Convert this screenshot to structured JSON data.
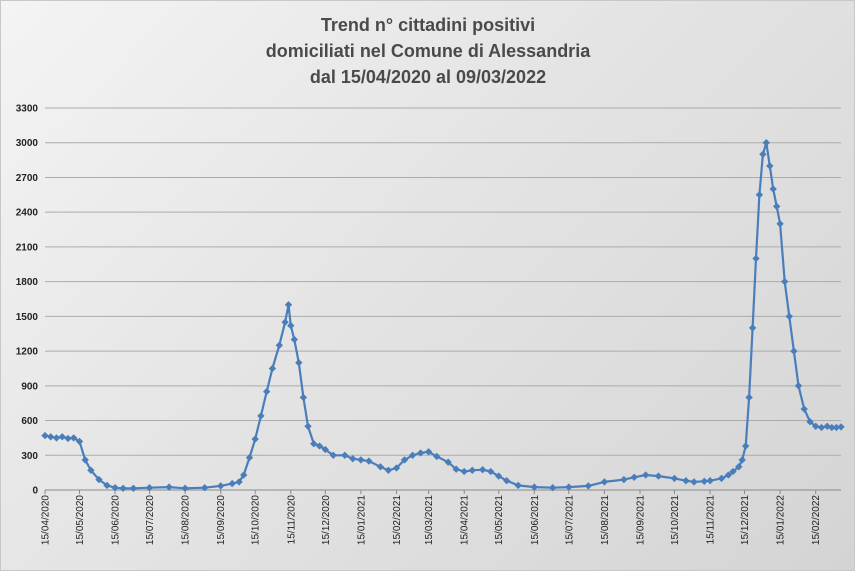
{
  "chart_data": {
    "type": "line",
    "title": [
      "Trend n° cittadini positivi",
      "domiciliati nel Comune di Alessandria",
      "dal 15/04/2020 al 09/03/2022"
    ],
    "xlabel": "",
    "ylabel": "",
    "ylim": [
      0,
      3300
    ],
    "yticks": [
      0,
      300,
      600,
      900,
      1200,
      1500,
      1800,
      2100,
      2400,
      2700,
      3000,
      3300
    ],
    "xticks": [
      "15/04/2020",
      "15/05/2020",
      "15/06/2020",
      "15/07/2020",
      "15/08/2020",
      "15/09/2020",
      "15/10/2020",
      "15/11/2020",
      "15/12/2020",
      "15/01/2021",
      "15/02/2021",
      "15/03/2021",
      "15/04/2021",
      "15/05/2021",
      "15/06/2021",
      "15/07/2021",
      "15/08/2021",
      "15/09/2021",
      "15/10/2021",
      "15/11/2021",
      "15/12/2021",
      "15/01/2022",
      "15/02/2022"
    ],
    "grid": true,
    "legend": "none",
    "color": "#4a7ebb",
    "series": [
      {
        "x": [
          "15/04/2020",
          "20/04/2020",
          "25/04/2020",
          "30/04/2020",
          "05/05/2020",
          "10/05/2020",
          "15/05/2020",
          "20/05/2020",
          "25/05/2020",
          "01/06/2020",
          "08/06/2020",
          "15/06/2020",
          "22/06/2020",
          "01/07/2020",
          "15/07/2020",
          "01/08/2020",
          "15/08/2020",
          "01/09/2020",
          "15/09/2020",
          "25/09/2020",
          "01/10/2020",
          "05/10/2020",
          "10/10/2020",
          "15/10/2020",
          "20/10/2020",
          "25/10/2020",
          "30/10/2020",
          "05/11/2020",
          "10/11/2020",
          "13/11/2020",
          "15/11/2020",
          "18/11/2020",
          "22/11/2020",
          "26/11/2020",
          "30/11/2020",
          "05/12/2020",
          "10/12/2020",
          "15/12/2020",
          "22/12/2020",
          "01/01/2021",
          "08/01/2021",
          "15/01/2021",
          "22/01/2021",
          "01/02/2021",
          "08/02/2021",
          "15/02/2021",
          "22/02/2021",
          "01/03/2021",
          "08/03/2021",
          "15/03/2021",
          "22/03/2021",
          "01/04/2021",
          "08/04/2021",
          "15/04/2021",
          "22/04/2021",
          "01/05/2021",
          "08/05/2021",
          "15/05/2021",
          "22/05/2021",
          "01/06/2021",
          "15/06/2021",
          "01/07/2021",
          "15/07/2021",
          "01/08/2021",
          "15/08/2021",
          "01/09/2021",
          "10/09/2021",
          "20/09/2021",
          "01/10/2021",
          "15/10/2021",
          "25/10/2021",
          "01/11/2021",
          "10/11/2021",
          "15/11/2021",
          "25/11/2021",
          "01/12/2021",
          "05/12/2021",
          "10/12/2021",
          "13/12/2021",
          "16/12/2021",
          "19/12/2021",
          "22/12/2021",
          "25/12/2021",
          "28/12/2021",
          "31/12/2021",
          "03/01/2022",
          "06/01/2022",
          "09/01/2022",
          "12/01/2022",
          "15/01/2022",
          "19/01/2022",
          "23/01/2022",
          "27/01/2022",
          "31/01/2022",
          "05/02/2022",
          "10/02/2022",
          "15/02/2022",
          "20/02/2022",
          "25/02/2022",
          "01/03/2022",
          "05/03/2022",
          "09/03/2022"
        ],
        "values": [
          470,
          460,
          450,
          460,
          445,
          450,
          420,
          260,
          170,
          90,
          40,
          20,
          15,
          15,
          20,
          25,
          15,
          20,
          35,
          55,
          70,
          130,
          280,
          440,
          640,
          850,
          1050,
          1250,
          1450,
          1600,
          1420,
          1300,
          1100,
          800,
          550,
          400,
          380,
          350,
          300,
          300,
          270,
          260,
          250,
          200,
          170,
          190,
          260,
          300,
          320,
          330,
          290,
          240,
          180,
          160,
          170,
          175,
          160,
          120,
          80,
          40,
          25,
          20,
          25,
          35,
          70,
          90,
          110,
          130,
          120,
          100,
          80,
          70,
          75,
          80,
          100,
          130,
          160,
          200,
          260,
          380,
          800,
          1400,
          2000,
          2550,
          2900,
          3000,
          2800,
          2600,
          2450,
          2300,
          1800,
          1500,
          1200,
          900,
          700,
          590,
          550,
          540,
          550,
          540,
          540,
          545
        ]
      }
    ]
  }
}
